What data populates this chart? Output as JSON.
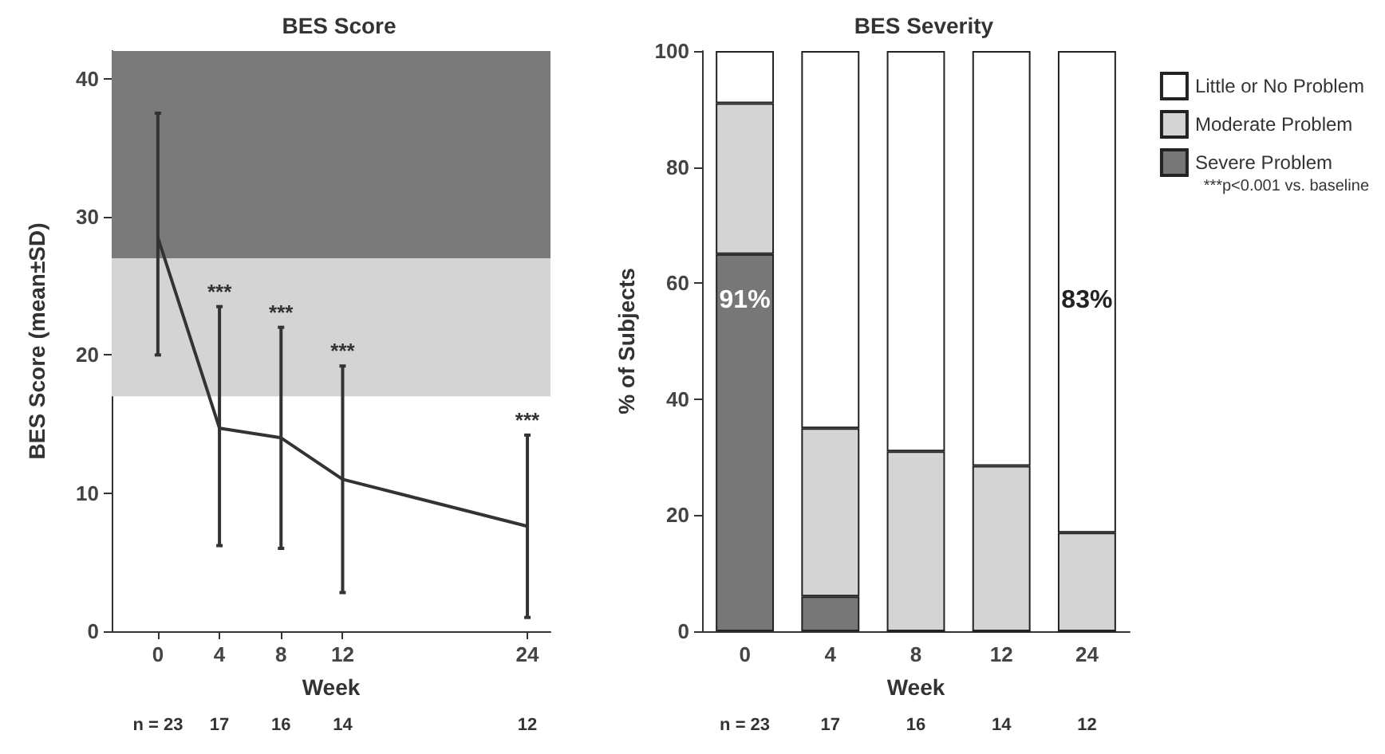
{
  "chart_data": [
    {
      "type": "line",
      "title": "BES Score",
      "xlabel": "Week",
      "ylabel": "BES Score (mean±SD)",
      "x": [
        0,
        4,
        8,
        12,
        24
      ],
      "series": [
        {
          "color": "#333333",
          "values": [
            28.5,
            14.7,
            14,
            11,
            7.6
          ],
          "errors": [
            [
              20,
              37.5
            ],
            [
              6.2,
              23.5
            ],
            [
              6,
              22
            ],
            [
              2.8,
              19.2
            ],
            [
              1,
              14.2
            ]
          ]
        }
      ],
      "xlim": [
        -3,
        25.5
      ],
      "xticks": [
        0,
        4,
        8,
        12,
        24
      ],
      "ylim": [
        0,
        42
      ],
      "yticks": [
        0,
        10,
        20,
        30,
        40
      ],
      "bands": [
        {
          "axis": "y",
          "from": 27,
          "to": 42,
          "color": "#7a7a7a"
        },
        {
          "axis": "y",
          "from": 17,
          "to": 27,
          "color": "#d4d4d4"
        }
      ],
      "marker": "none",
      "line_style": "solid",
      "grid": false,
      "annotations": [
        {
          "text": "***",
          "x": 4,
          "y": 23.5
        },
        {
          "text": "***",
          "x": 8,
          "y": 22
        },
        {
          "text": "***",
          "x": 12,
          "y": 19.2
        },
        {
          "text": "***",
          "x": 24,
          "y": 14.2
        },
        "n = 23",
        "17",
        "16",
        "14",
        "12"
      ]
    },
    {
      "type": "bar",
      "title": "BES Severity",
      "xlabel": "Week",
      "ylabel": "% of Subjects",
      "stacked": true,
      "categories": [
        "0",
        "4",
        "8",
        "12",
        "24"
      ],
      "series": [
        {
          "name": "Severe Problem",
          "color": "#777777",
          "values": [
            65,
            6,
            0,
            0,
            0
          ]
        },
        {
          "name": "Moderate Problem",
          "color": "#d4d4d4",
          "values": [
            26,
            29,
            31,
            28.5,
            17
          ]
        },
        {
          "name": "Little or No Problem",
          "color": "#ffffff",
          "values": [
            9,
            65,
            69,
            71.5,
            83
          ]
        }
      ],
      "ylim": [
        0,
        100
      ],
      "yticks": [
        0,
        20,
        40,
        60,
        80,
        100
      ],
      "grid": false,
      "legend": "top right",
      "annotations": [
        "91%",
        "83%",
        "***p<0.001 vs. baseline",
        "n = 23",
        "17",
        "16",
        "14",
        "12"
      ]
    }
  ]
}
